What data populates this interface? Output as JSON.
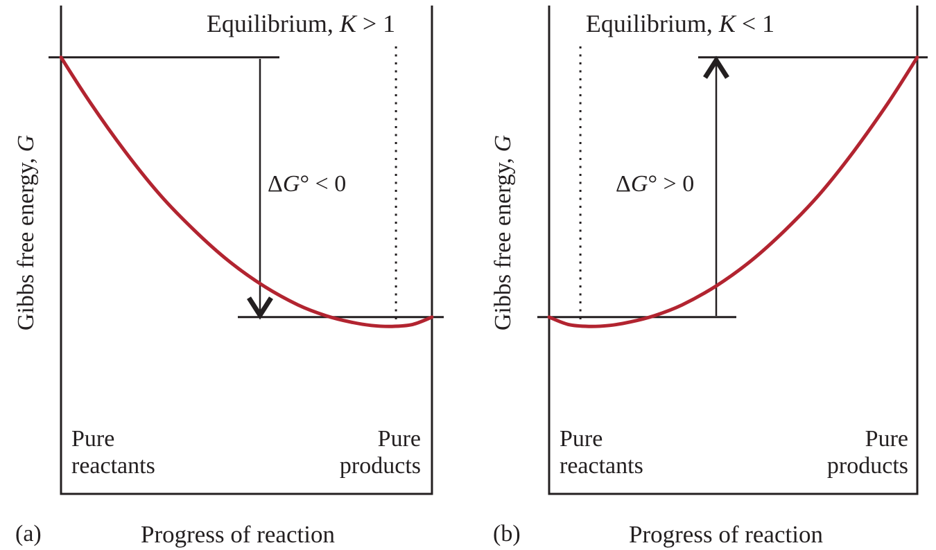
{
  "figure": {
    "background": "#ffffff",
    "ink_color": "#231f20",
    "curve_color": "#b22430"
  },
  "panels": [
    {
      "tag": "(a)",
      "title_prefix": "Equilibrium,",
      "title_symbol": "K",
      "title_relation": "> 1",
      "y_label_prefix": "Gibbs free energy,",
      "y_label_symbol": "G",
      "x_label": "Progress of reaction",
      "dg_delta": "Δ",
      "dg_symbol": "G",
      "dg_relation": "° < 0",
      "left_line1": "Pure",
      "left_line2": "reactants",
      "right_line1": "Pure",
      "right_line2": "products"
    },
    {
      "tag": "(b)",
      "title_prefix": "Equilibrium,",
      "title_symbol": "K",
      "title_relation": "< 1",
      "y_label_prefix": "Gibbs free energy,",
      "y_label_symbol": "G",
      "x_label": "Progress of reaction",
      "dg_delta": "Δ",
      "dg_symbol": "G",
      "dg_relation": "° > 0",
      "left_line1": "Pure",
      "left_line2": "reactants",
      "right_line1": "Pure",
      "right_line2": "products"
    }
  ],
  "chart_data": [
    {
      "type": "line",
      "panel": "a",
      "title": "Equilibrium, K > 1",
      "xlabel": "Progress of reaction",
      "ylabel": "Gibbs free energy, G",
      "x_endpoint_labels": [
        "Pure reactants",
        "Pure products"
      ],
      "annotation": "ΔG° < 0",
      "annotation_meaning": "arrow drops from pure-reactants G level to pure-products G level",
      "reactants_G": 0.894,
      "products_G": 0.362,
      "minimum_G": 0.343,
      "equilibrium_progress": 0.903,
      "grid": false,
      "series": [
        {
          "name": "Gibbs free energy",
          "progress": [
            0,
            0.079,
            0.172,
            0.265,
            0.359,
            0.452,
            0.546,
            0.639,
            0.714,
            0.78,
            0.836,
            0.892,
            0.948,
            1
          ],
          "G": [
            0.894,
            0.801,
            0.702,
            0.614,
            0.54,
            0.477,
            0.426,
            0.387,
            0.365,
            0.352,
            0.345,
            0.343,
            0.347,
            0.362
          ]
        }
      ]
    },
    {
      "type": "line",
      "panel": "b",
      "title": "Equilibrium, K < 1",
      "xlabel": "Progress of reaction",
      "ylabel": "Gibbs free energy, G",
      "x_endpoint_labels": [
        "Pure reactants",
        "Pure products"
      ],
      "annotation": "ΔG° > 0",
      "annotation_meaning": "arrow rises from pure-reactants G level to pure-products G level",
      "reactants_G": 0.362,
      "products_G": 0.894,
      "minimum_G": 0.343,
      "equilibrium_progress": 0.085,
      "grid": false,
      "series": [
        {
          "name": "Gibbs free energy",
          "progress": [
            0,
            0.052,
            0.108,
            0.164,
            0.22,
            0.286,
            0.361,
            0.454,
            0.548,
            0.641,
            0.735,
            0.828,
            0.921,
            1
          ],
          "G": [
            0.362,
            0.347,
            0.343,
            0.345,
            0.352,
            0.365,
            0.387,
            0.426,
            0.477,
            0.54,
            0.614,
            0.702,
            0.801,
            0.894
          ]
        }
      ]
    }
  ]
}
